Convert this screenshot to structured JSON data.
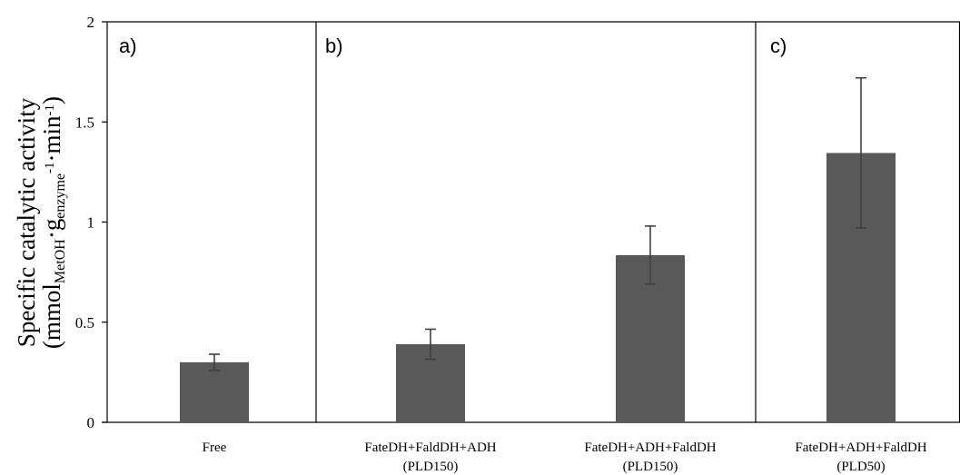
{
  "chart_data": {
    "type": "bar",
    "categories": [
      {
        "line1": "Free",
        "line2": ""
      },
      {
        "line1": "FateDH+FaldDH+ADH",
        "line2": "(PLD150)"
      },
      {
        "line1": "FateDH+ADH+FaldDH",
        "line2": "(PLD150)"
      },
      {
        "line1": "FateDH+ADH+FaldDH",
        "line2": "(PLD50)"
      }
    ],
    "values": [
      0.3,
      0.39,
      0.835,
      1.345
    ],
    "errors": [
      0.04,
      0.075,
      0.145,
      0.375
    ],
    "ylim": [
      0,
      2
    ],
    "yticks": [
      "0",
      "0.5",
      "1",
      "1.5",
      "2"
    ],
    "ylabel": {
      "line1": "Specific catalytic activity",
      "line2_parts": [
        {
          "t": "(mmol",
          "k": "n"
        },
        {
          "t": "MetOH",
          "k": "sub"
        },
        {
          "t": "·g",
          "k": "n"
        },
        {
          "t": "enzyme",
          "k": "sub"
        },
        {
          "t": "-1",
          "k": "sup"
        },
        {
          "t": "·min",
          "k": "n"
        },
        {
          "t": "-1",
          "k": "sup"
        },
        {
          "t": ")",
          "k": "n"
        }
      ]
    },
    "panels": [
      {
        "label": "a)"
      },
      {
        "label": "b)"
      },
      {
        "label": "c)"
      }
    ],
    "bar_color": "#595959",
    "error_color": "#404040",
    "axis_color": "#000000",
    "grid": false,
    "legend": "none"
  }
}
